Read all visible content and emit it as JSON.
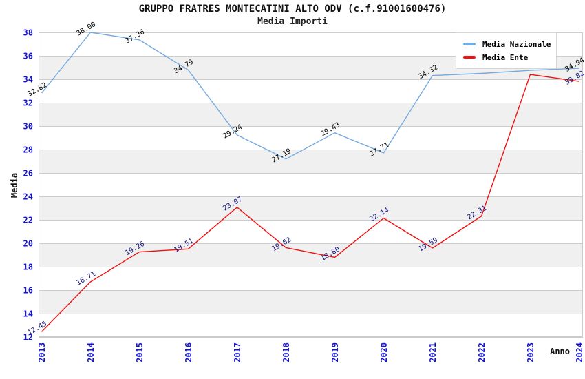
{
  "title": "GRUPPO FRATRES MONTECATINI ALTO ODV (c.f.91001600476)",
  "subtitle": "Media Importi",
  "legend": {
    "position": "top-right",
    "items": [
      {
        "label": "Media Nazionale",
        "color": "#74aadf"
      },
      {
        "label": "Media Ente",
        "color": "#ee1111"
      }
    ]
  },
  "axes": {
    "y_ticks": [
      38,
      36,
      34,
      32,
      30,
      28,
      26,
      24,
      22,
      20,
      18,
      16,
      14,
      12
    ],
    "tick_color": "#1515d0",
    "grid_color": "#cccccc",
    "border_color": "#cccccc"
  },
  "chart_data": {
    "type": "line",
    "title": "GRUPPO FRATRES MONTECATINI ALTO ODV (c.f.91001600476)",
    "subtitle": "Media Importi",
    "xlabel": "Anno",
    "ylabel": "Media",
    "x": [
      "2013",
      "2014",
      "2015",
      "2016",
      "2017",
      "2018",
      "2019",
      "2020",
      "2021",
      "2022",
      "2023",
      "2024"
    ],
    "ylim": [
      12,
      38
    ],
    "ytick_step": 2,
    "grid": "horizontal-bands",
    "band_colors": [
      "#ffffff",
      "#f0f0f0"
    ],
    "legend_position": "top-right",
    "series": [
      {
        "name": "Media Nazionale",
        "color": "#74aadf",
        "label_color": "#000000",
        "values": [
          32.82,
          38.0,
          37.36,
          34.79,
          29.24,
          27.19,
          29.43,
          27.71,
          34.32,
          34.5,
          34.76,
          34.94
        ],
        "label_visible": [
          true,
          true,
          true,
          true,
          true,
          true,
          true,
          true,
          true,
          false,
          false,
          true
        ],
        "note": "2022 and 2023 values estimated from line position; their labels are hidden behind the legend"
      },
      {
        "name": "Media Ente",
        "color": "#ee1111",
        "label_color": "#10107e",
        "values": [
          12.45,
          16.71,
          19.26,
          19.51,
          23.07,
          19.62,
          18.8,
          22.14,
          19.59,
          22.31,
          34.41,
          33.82
        ],
        "label_visible": [
          true,
          true,
          true,
          true,
          true,
          true,
          true,
          true,
          true,
          true,
          false,
          true
        ],
        "note": "2023 value estimated from line position; its label is hidden behind the legend"
      }
    ]
  }
}
